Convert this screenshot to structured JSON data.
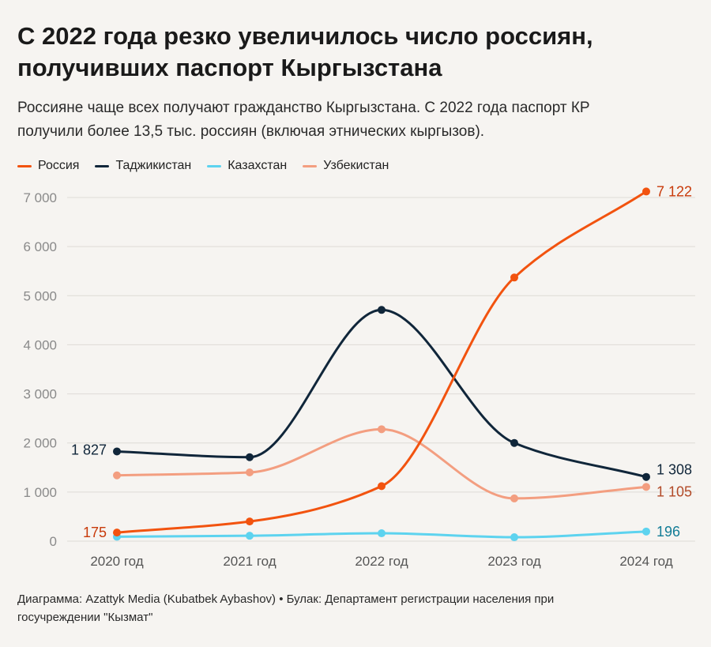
{
  "title_line1": "С 2022 года резко увеличилось число россиян,",
  "title_line2": "получивших паспорт Кыргызстана",
  "subtitle_line1": "Россияне чаще всех получают гражданство Кыргызстана. С 2022 года паспорт КР",
  "subtitle_line2": "получили более 13,5 тыс. россиян (включая этнических кыргызов).",
  "footer_line1": "Диаграмма: Azattyk Media (Kubatbek Aybashov) • Булак: Департамент регистрации населения при",
  "footer_line2": "госучреждении \"Кызмат\"",
  "chart_data": {
    "type": "line",
    "categories": [
      "2020 год",
      "2021 год",
      "2022 год",
      "2023 год",
      "2024 год"
    ],
    "ylim": [
      0,
      7000
    ],
    "yticks": [
      0,
      1000,
      2000,
      3000,
      4000,
      5000,
      6000,
      7000
    ],
    "ytick_labels": [
      "0",
      "1 000",
      "2 000",
      "3 000",
      "4 000",
      "5 000",
      "6 000",
      "7 000"
    ],
    "grid": true,
    "legend_position": "top-left",
    "series": [
      {
        "name": "Россия",
        "color": "#f2530f",
        "label_color": "#c83a0a",
        "values": [
          175,
          400,
          1120,
          5370,
          7122
        ],
        "labels": {
          "0": "175",
          "4": "7 122"
        }
      },
      {
        "name": "Таджикистан",
        "color": "#10263a",
        "label_color": "#10263a",
        "values": [
          1827,
          1710,
          4710,
          2000,
          1308
        ],
        "labels": {
          "0": "1 827",
          "4": "1 308"
        }
      },
      {
        "name": "Казахстан",
        "color": "#5dd3ef",
        "label_color": "#127c96",
        "values": [
          90,
          110,
          160,
          80,
          196
        ],
        "labels": {
          "4": "196"
        }
      },
      {
        "name": "Узбекистан",
        "color": "#f39e80",
        "label_color": "#b24a28",
        "values": [
          1340,
          1400,
          2280,
          870,
          1105
        ],
        "labels": {
          "4": "1 105"
        }
      }
    ]
  }
}
